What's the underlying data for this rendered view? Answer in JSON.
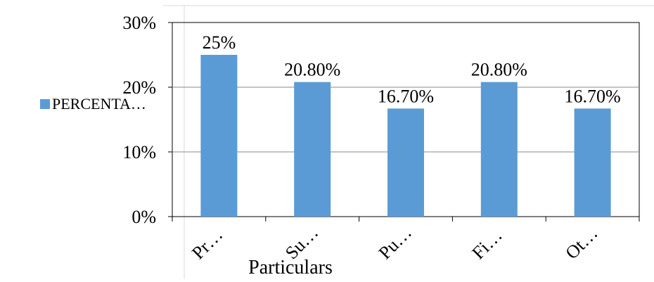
{
  "chart_data": {
    "type": "bar",
    "categories": [
      "Pr…",
      "Su…",
      "Pu…",
      "Fi…",
      "Ot…"
    ],
    "series": [
      {
        "name": "PERCENTA…",
        "values": [
          25,
          20.8,
          16.7,
          20.8,
          16.7
        ],
        "labels": [
          "25%",
          "20.80%",
          "16.70%",
          "20.80%",
          "16.70%"
        ],
        "color": "#5b9bd5"
      }
    ],
    "y_ticks": [
      "0%",
      "10%",
      "20%",
      "30%"
    ],
    "ylim": [
      0,
      30
    ],
    "xlabel": "Particulars",
    "ylabel": "",
    "title": "",
    "legend_position": "left",
    "grid": true,
    "colors": {
      "bar": "#5b9bd5",
      "grid": "#888888",
      "axis": "#000000",
      "frame": "#d9d9d9"
    }
  }
}
